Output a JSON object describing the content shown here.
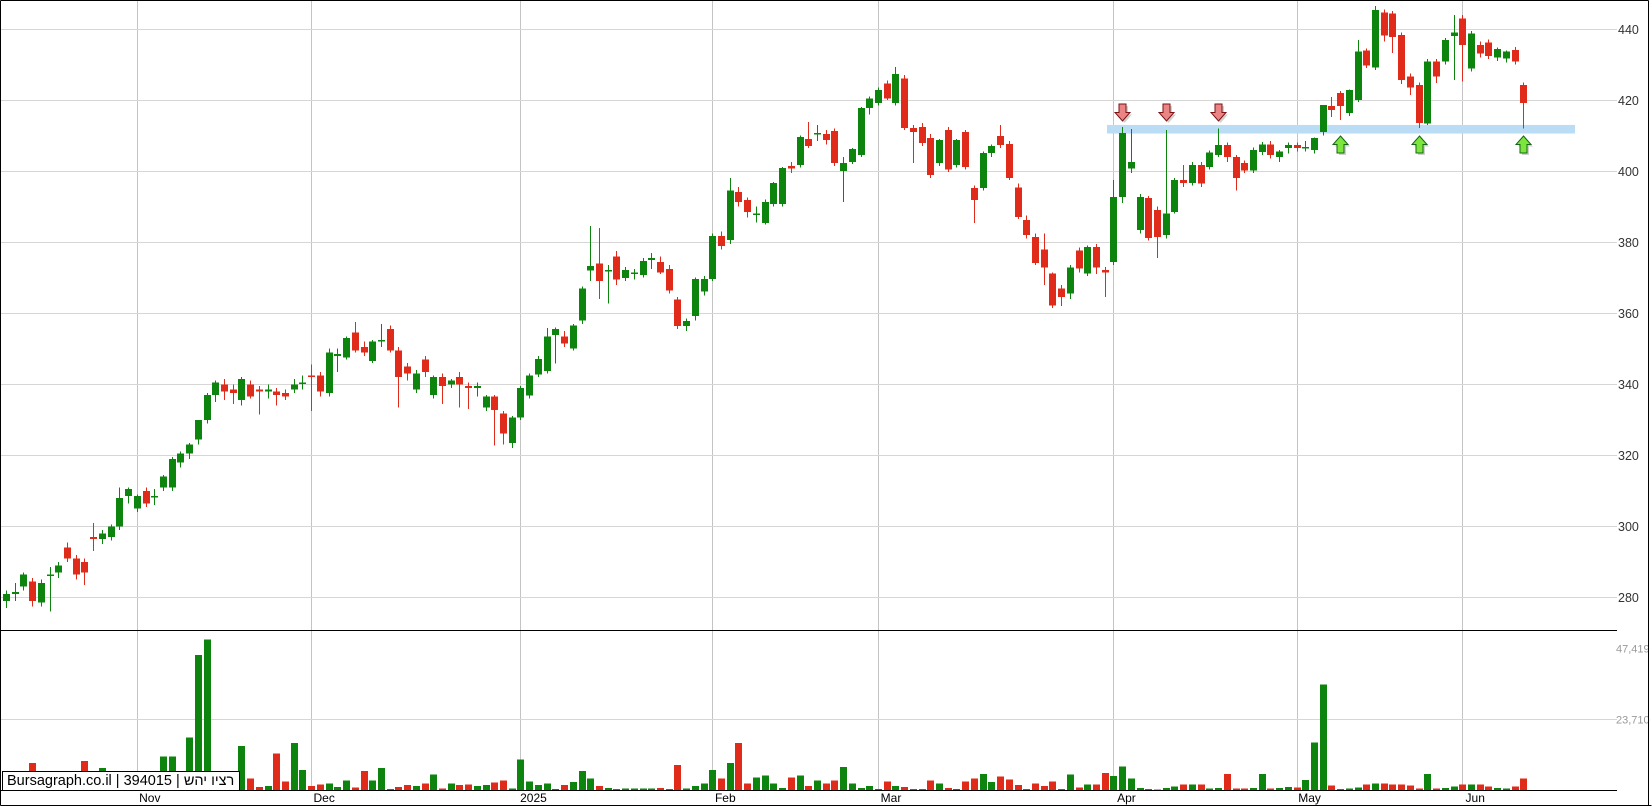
{
  "watermark": {
    "text": "Bursagraph.co.il | 394015 | רציו יהש"
  },
  "chart_data": {
    "type": "candlestick",
    "source_label": "Bursagraph.co.il",
    "security_id": "394015",
    "security_name": "רציו יהש",
    "price_axis": {
      "side": "right",
      "ticks": [
        440,
        420,
        400,
        380,
        360,
        340,
        320,
        300,
        280
      ],
      "range_shown": [
        275,
        448
      ],
      "label_color": "#333333"
    },
    "volume_axis": {
      "side": "right",
      "ticks": [
        {
          "value": 47419,
          "label": "47,419",
          "gridline": false
        },
        {
          "value": 23710,
          "label": "23,710",
          "gridline": true
        }
      ],
      "label_color": "#9a9a9a"
    },
    "x_axis": {
      "months": [
        {
          "label": "Nov",
          "candle_index": 15
        },
        {
          "label": "Dec",
          "candle_index": 35
        },
        {
          "label": "2025",
          "candle_index": 59
        },
        {
          "label": "Feb",
          "candle_index": 81
        },
        {
          "label": "Mar",
          "candle_index": 100
        },
        {
          "label": "Apr",
          "candle_index": 127
        },
        {
          "label": "May",
          "candle_index": 148
        },
        {
          "label": "Jun",
          "candle_index": 167
        }
      ],
      "label_color": "#000000"
    },
    "support_line": {
      "price_top": 413,
      "price_bottom": 411,
      "from_candle_index": 127,
      "extends_to_right_margin": true,
      "color": "#badcf5"
    },
    "annotations": {
      "sell_arrows_at_candle_index": [
        128,
        133,
        139
      ],
      "buy_arrows_at_candle_index": [
        153,
        162,
        174
      ],
      "sell_arrow_fill": "#e98585",
      "sell_arrow_stroke": "#7e1212",
      "buy_arrow_fill": "#7ce63c",
      "buy_arrow_stroke": "#156615"
    },
    "colors": {
      "up": "#0d840d",
      "down": "#e02a1a",
      "grid_h": "#d6d6d6",
      "grid_v": "#c4c4c4",
      "frame": "#000000",
      "background": "#ffffff"
    },
    "candles_ohlc": [
      [
        279,
        282,
        277,
        281
      ],
      [
        281,
        284,
        279,
        281.5
      ],
      [
        283,
        287,
        282,
        286.5
      ],
      [
        284.5,
        285.5,
        277.5,
        279
      ],
      [
        278.5,
        285,
        277.5,
        284
      ],
      [
        286,
        288.5,
        276,
        286.5
      ],
      [
        287,
        290,
        285.5,
        289
      ],
      [
        294,
        295.5,
        290,
        291
      ],
      [
        291,
        292,
        285,
        286.5
      ],
      [
        290,
        291,
        283.5,
        287
      ],
      [
        297,
        301,
        293,
        296.5
      ],
      [
        296.5,
        299,
        295,
        298
      ],
      [
        297,
        300.5,
        296,
        300
      ],
      [
        300,
        311,
        299,
        308
      ],
      [
        308.5,
        311,
        306.5,
        310.5
      ],
      [
        305,
        309,
        304,
        308.5
      ],
      [
        310,
        311,
        305.5,
        306.5
      ],
      [
        308.5,
        310.5,
        306,
        308.5
      ],
      [
        311,
        314.5,
        310,
        314
      ],
      [
        311,
        319.5,
        310,
        319
      ],
      [
        318,
        321,
        316.5,
        320.5
      ],
      [
        320.5,
        323.5,
        319,
        323
      ],
      [
        324.5,
        330,
        323,
        330
      ],
      [
        330,
        337.5,
        329,
        337
      ],
      [
        337,
        341,
        335,
        340.5
      ],
      [
        340,
        341.5,
        335.5,
        338
      ],
      [
        338.5,
        340,
        334.5,
        337.5
      ],
      [
        335.5,
        342,
        334,
        341.5
      ],
      [
        340,
        341,
        336,
        336.5
      ],
      [
        338.5,
        339.5,
        331.5,
        338
      ],
      [
        338,
        340,
        336,
        338.5
      ],
      [
        338,
        339,
        334,
        337
      ],
      [
        337.5,
        338.5,
        335.5,
        336.5
      ],
      [
        338.5,
        341.5,
        337.5,
        340
      ],
      [
        340.5,
        342.5,
        338.5,
        340.5
      ],
      [
        342.5,
        345.5,
        332.5,
        342
      ],
      [
        342.5,
        343.5,
        336.5,
        338
      ],
      [
        337.5,
        350,
        336.5,
        349
      ],
      [
        348,
        350,
        343.5,
        348.5
      ],
      [
        347.5,
        353.5,
        347,
        353
      ],
      [
        354.5,
        357.5,
        349,
        349.5
      ],
      [
        350.5,
        352,
        348,
        349
      ],
      [
        346.5,
        352.5,
        346,
        352
      ],
      [
        352.5,
        357,
        350.5,
        352.5
      ],
      [
        355.5,
        356.5,
        349,
        349.5
      ],
      [
        349.5,
        350.5,
        333.5,
        342
      ],
      [
        345,
        346,
        341,
        343
      ],
      [
        338.5,
        344,
        337.5,
        343
      ],
      [
        347,
        348,
        342,
        343.4
      ],
      [
        337,
        342.5,
        336,
        342
      ],
      [
        342,
        343,
        334.5,
        339.5
      ],
      [
        340,
        341.5,
        339,
        341
      ],
      [
        342,
        343.5,
        333.5,
        340
      ],
      [
        339.5,
        340.5,
        333,
        339
      ],
      [
        339,
        340.5,
        336.5,
        339.5
      ],
      [
        333.5,
        337,
        332.5,
        336.5
      ],
      [
        336.5,
        337,
        322.8,
        332.7
      ],
      [
        331.8,
        332.5,
        323,
        326.2
      ],
      [
        323.4,
        331,
        322,
        330.7
      ],
      [
        330.7,
        339.5,
        330,
        339
      ],
      [
        336.9,
        343,
        336,
        342.5
      ],
      [
        342.8,
        348,
        342,
        347.1
      ],
      [
        343.7,
        355.9,
        343,
        353.5
      ],
      [
        353.8,
        356,
        345.9,
        355.5
      ],
      [
        353.5,
        355,
        350.5,
        351.5
      ],
      [
        350.1,
        357,
        349.5,
        356.5
      ],
      [
        358,
        367.5,
        357,
        367
      ],
      [
        372,
        384.5,
        369,
        373.3
      ],
      [
        374,
        384,
        364,
        369
      ],
      [
        372,
        373.5,
        362.8,
        372.1
      ],
      [
        376,
        377.5,
        368,
        369.5
      ],
      [
        369.9,
        373,
        369,
        372.1
      ],
      [
        371,
        372.5,
        369.5,
        371.5
      ],
      [
        370.8,
        375.5,
        370,
        374.7
      ],
      [
        375,
        377,
        372.5,
        375.5
      ],
      [
        374.4,
        376,
        371,
        371.5
      ],
      [
        372.4,
        373.5,
        365.5,
        366.4
      ],
      [
        363.8,
        364.5,
        355.5,
        356.4
      ],
      [
        356.4,
        358.5,
        355,
        357.8
      ],
      [
        359.2,
        370,
        358,
        369.6
      ],
      [
        366.1,
        370.5,
        365,
        369.6
      ],
      [
        369.6,
        382.5,
        369,
        381.7
      ],
      [
        381.7,
        383,
        378,
        378.9
      ],
      [
        380.6,
        398,
        379.5,
        394.6
      ],
      [
        394.1,
        395.5,
        390,
        391.3
      ],
      [
        391.9,
        392.5,
        387,
        388.5
      ],
      [
        387.6,
        390,
        385.5,
        388
      ],
      [
        385.4,
        392,
        385,
        391.3
      ],
      [
        390.7,
        397,
        390,
        396.6
      ],
      [
        390.7,
        401.2,
        390,
        400.9
      ],
      [
        401.4,
        402.5,
        399.5,
        400.8
      ],
      [
        401.7,
        410,
        401,
        409.6
      ],
      [
        409,
        413.8,
        406.5,
        407
      ],
      [
        410.7,
        413,
        408.5,
        410.7
      ],
      [
        410.4,
        411.5,
        407.5,
        408.7
      ],
      [
        411.3,
        412,
        401.5,
        402.3
      ],
      [
        400,
        404,
        391.3,
        402.3
      ],
      [
        402.5,
        406.5,
        402,
        406.2
      ],
      [
        404.5,
        418,
        404,
        417.7
      ],
      [
        417.7,
        421,
        416,
        420.5
      ],
      [
        419.1,
        423.5,
        418.5,
        422.8
      ],
      [
        424.7,
        425.5,
        420,
        420.5
      ],
      [
        419.1,
        429.3,
        418.5,
        427.3
      ],
      [
        426.1,
        427,
        411.5,
        412.1
      ],
      [
        412.1,
        413,
        402.3,
        411
      ],
      [
        412.4,
        413.5,
        407,
        407.9
      ],
      [
        409.3,
        410.5,
        398,
        398.9
      ],
      [
        402.3,
        409,
        401.5,
        408.7
      ],
      [
        411.5,
        412.4,
        399.7,
        400.5
      ],
      [
        401.7,
        409,
        401,
        408.7
      ],
      [
        411,
        411.5,
        400.5,
        401.2
      ],
      [
        395.2,
        396,
        385.4,
        391.9
      ],
      [
        395.2,
        405.5,
        394.5,
        405.1
      ],
      [
        405.1,
        407.5,
        404,
        407
      ],
      [
        409.9,
        413,
        406.5,
        407.3
      ],
      [
        407.6,
        408.5,
        397.5,
        398
      ],
      [
        395.4,
        396.5,
        386.5,
        387.1
      ],
      [
        386.3,
        387.5,
        381,
        382
      ],
      [
        381.5,
        382.5,
        373.5,
        374.1
      ],
      [
        378,
        382.5,
        367.9,
        372.9
      ],
      [
        371.2,
        371.5,
        361.4,
        362.2
      ],
      [
        367,
        368,
        362,
        364.5
      ],
      [
        365.6,
        373.5,
        364,
        372.9
      ],
      [
        377.7,
        378.5,
        371.5,
        372.6
      ],
      [
        371.2,
        379,
        370.5,
        378.6
      ],
      [
        378.6,
        379.5,
        371,
        372.9
      ],
      [
        372.1,
        373,
        364.5,
        371.5
      ],
      [
        374.4,
        397.5,
        373.5,
        392.7
      ],
      [
        392.7,
        412.4,
        391,
        410.7
      ],
      [
        400.8,
        411.8,
        399.5,
        402.5
      ],
      [
        383.4,
        393.5,
        382.5,
        392.7
      ],
      [
        392.4,
        393,
        380.5,
        381.1
      ],
      [
        389,
        390,
        375.5,
        381.5
      ],
      [
        382,
        411.5,
        381,
        388
      ],
      [
        388.5,
        398,
        388,
        397.5
      ],
      [
        397.5,
        401.7,
        395.5,
        396.6
      ],
      [
        396.6,
        402.5,
        396,
        401.7
      ],
      [
        401.7,
        402.5,
        395.5,
        396.5
      ],
      [
        401.1,
        405.8,
        400.5,
        405.3
      ],
      [
        404.5,
        412,
        404,
        407.3
      ],
      [
        407.3,
        408,
        402.5,
        403.9
      ],
      [
        403.9,
        404.5,
        394.6,
        398
      ],
      [
        402.3,
        403,
        399.5,
        400.2
      ],
      [
        400.2,
        406.7,
        399.5,
        406
      ],
      [
        405.4,
        408.2,
        404.5,
        407.5
      ],
      [
        407.5,
        408.5,
        403.5,
        404.5
      ],
      [
        404,
        406,
        402.5,
        405.5
      ],
      [
        406.5,
        408,
        405,
        407.3
      ],
      [
        407.3,
        408,
        405.5,
        406.5
      ],
      [
        406.8,
        408.5,
        405.5,
        406.8
      ],
      [
        405.9,
        409.5,
        405,
        409.3
      ],
      [
        411,
        418.6,
        410,
        418.6
      ],
      [
        418.3,
        420.8,
        415.2,
        417.2
      ],
      [
        422,
        422.5,
        414.4,
        418.3
      ],
      [
        416.3,
        423,
        415.5,
        422.8
      ],
      [
        420,
        436.9,
        419.5,
        433.6
      ],
      [
        433.9,
        434.5,
        429,
        429.7
      ],
      [
        429.2,
        446.5,
        428.5,
        445.4
      ],
      [
        444.7,
        445.5,
        436.5,
        438.1
      ],
      [
        444.4,
        445,
        433.2,
        437.8
      ],
      [
        438.3,
        439,
        424.5,
        425.6
      ],
      [
        426.6,
        427.5,
        421.4,
        423.6
      ],
      [
        424.2,
        425,
        412.1,
        413.6
      ],
      [
        413.4,
        431.5,
        413,
        430.8
      ],
      [
        430.8,
        431.5,
        424.8,
        426.6
      ],
      [
        430.8,
        437.5,
        430,
        436.9
      ],
      [
        438,
        443.9,
        425.6,
        439
      ],
      [
        443,
        444,
        425.2,
        435.5
      ],
      [
        428.9,
        439.5,
        428,
        438.8
      ],
      [
        435.5,
        436.5,
        432,
        433.1
      ],
      [
        436.2,
        437,
        431.5,
        432.4
      ],
      [
        432,
        434.8,
        431,
        434.3
      ],
      [
        431.7,
        434,
        430.5,
        433.6
      ],
      [
        434.1,
        435,
        430,
        430.8
      ],
      [
        424.2,
        425,
        412,
        419.1
      ]
    ],
    "volumes": [
      2000,
      1500,
      2500,
      9000,
      1800,
      1200,
      4500,
      2200,
      6400,
      9600,
      4800,
      7300,
      2000,
      5800,
      3000,
      5800,
      3500,
      2500,
      11200,
      11200,
      5400,
      17600,
      45100,
      50200,
      6400,
      3000,
      5800,
      14700,
      3800,
      1000,
      1300,
      12200,
      2900,
      15700,
      6700,
      1300,
      1900,
      2200,
      1000,
      3200,
      800,
      6400,
      3200,
      7400,
      300,
      1000,
      1600,
      1300,
      2200,
      5100,
      500,
      2200,
      1600,
      1900,
      1300,
      1600,
      2500,
      3200,
      500,
      10200,
      2900,
      1600,
      2200,
      300,
      1600,
      2600,
      6400,
      3800,
      1300,
      640,
      300,
      500,
      500,
      500,
      500,
      640,
      300,
      8300,
      500,
      1300,
      2200,
      6700,
      3800,
      9000,
      15700,
      2200,
      4200,
      4800,
      2200,
      640,
      4200,
      4800,
      1300,
      3200,
      2200,
      3200,
      7700,
      2200,
      640,
      1300,
      300,
      2900,
      1300,
      960,
      300,
      300,
      3200,
      2200,
      640,
      300,
      2900,
      3800,
      5400,
      2600,
      4500,
      3500,
      1600,
      300,
      2200,
      1300,
      2900,
      300,
      5100,
      800,
      1800,
      1800,
      5700,
      4600,
      7800,
      3800,
      600,
      400,
      200,
      600,
      1100,
      1900,
      1800,
      1900,
      500,
      700,
      5400,
      500,
      500,
      700,
      5400,
      500,
      700,
      1000,
      800,
      3400,
      15800,
      35300,
      1500,
      400,
      500,
      800,
      1900,
      2200,
      2200,
      1900,
      1900,
      1500,
      500,
      5400,
      500,
      600,
      1100,
      1900,
      1800,
      1900,
      1100,
      700,
      500,
      1100,
      3800
    ]
  }
}
